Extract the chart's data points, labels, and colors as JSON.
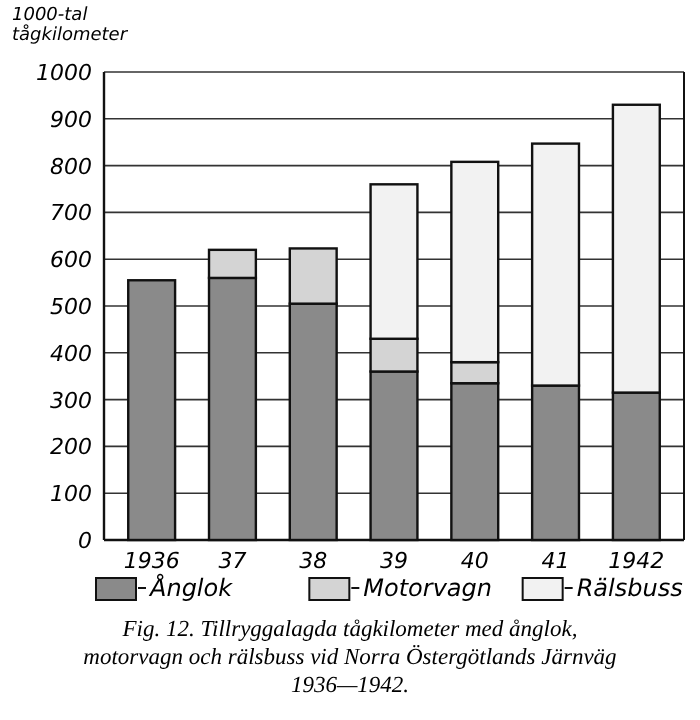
{
  "chart_data": {
    "type": "bar",
    "stacked": true,
    "ylabel": "1000-tal tågkilometer",
    "categories": [
      "1936",
      "37",
      "38",
      "39",
      "40",
      "41",
      "1942"
    ],
    "series": [
      {
        "name": "Ånglok",
        "color": "#8a8a8a",
        "values": [
          555,
          560,
          505,
          360,
          335,
          330,
          315
        ]
      },
      {
        "name": "Motorvagn",
        "color": "#d4d4d4",
        "values": [
          0,
          60,
          118,
          70,
          45,
          0,
          0
        ]
      },
      {
        "name": "Rälsbuss",
        "color": "#f2f2f2",
        "values": [
          0,
          0,
          0,
          330,
          428,
          517,
          615
        ]
      }
    ],
    "ylim": [
      0,
      1000
    ],
    "yticks": [
      0,
      100,
      200,
      300,
      400,
      500,
      600,
      700,
      800,
      900,
      1000
    ],
    "grid": "y",
    "legend": "bottom",
    "annotations": [
      "Fig. 12. Tillryggalagda tågkilometer med ånglok, motorvagn och rälsbuss vid Norra Östergötlands Järnväg 1936—1942."
    ]
  }
}
